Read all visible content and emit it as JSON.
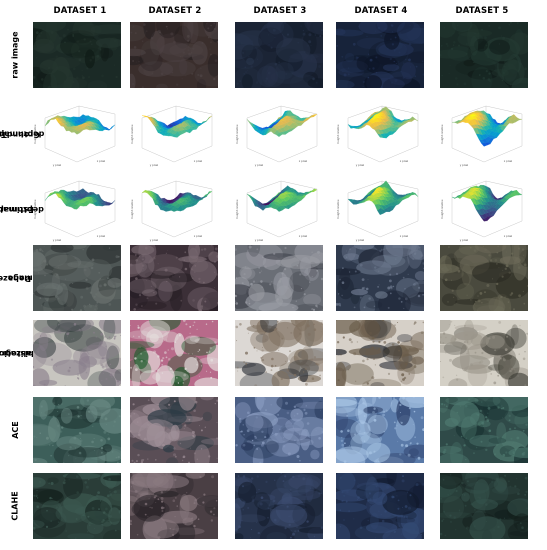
{
  "columns": [
    "DATASET 1",
    "DATASET 2",
    "DATASET 3",
    "DATASET 4",
    "DATASET 5"
  ],
  "rows": [
    {
      "label": "raw image",
      "lines": [
        "raw image"
      ],
      "kind": "image"
    },
    {
      "label": "GroundTruth depthmap",
      "lines": [
        "GroundTruth",
        "depthmap"
      ],
      "kind": "plot"
    },
    {
      "label": "Estimated depthmap",
      "lines": [
        "Estimated",
        "depthmap"
      ],
      "kind": "plot"
    },
    {
      "label": "Dehazed image",
      "lines": [
        "Dehazed",
        "image"
      ],
      "kind": "image"
    },
    {
      "label": "histogram equalization",
      "lines": [
        "histogram",
        "equalization"
      ],
      "kind": "image"
    },
    {
      "label": "ACE",
      "lines": [
        "ACE"
      ],
      "kind": "image"
    },
    {
      "label": "CLAHE",
      "lines": [
        "CLAHE"
      ],
      "kind": "image"
    }
  ],
  "plot_axis_text": {
    "z_label": "height relative",
    "x_label": "x pixel",
    "y_label": "y pixel"
  },
  "tile_palettes": {
    "raw image": [
      [
        "#1b2a26",
        "#25362f",
        "#0f1a16"
      ],
      [
        "#3a2e2c",
        "#4d4344",
        "#201b1d"
      ],
      [
        "#1b2435",
        "#27334a",
        "#121a28"
      ],
      [
        "#17233a",
        "#243458",
        "#0d1526"
      ],
      [
        "#1a2a26",
        "#243a33",
        "#101a18"
      ]
    ],
    "Dehazed image": [
      [
        "#4e5655",
        "#6b7270",
        "#2e3434"
      ],
      [
        "#3b2f37",
        "#7a6a72",
        "#241c22"
      ],
      [
        "#6a6e76",
        "#9a9ca4",
        "#3d4049"
      ],
      [
        "#2f3a4d",
        "#6f7b90",
        "#1c2434"
      ],
      [
        "#4a4a3e",
        "#6c6a58",
        "#2b2b22"
      ]
    ],
    "histogram equalization": [
      [
        "#c8c6c0",
        "#8a7f8c",
        "#2e3a3a"
      ],
      [
        "#b86a8a",
        "#e5e0de",
        "#1c5a2a"
      ],
      [
        "#dcd8d4",
        "#7f7060",
        "#2a2e36"
      ],
      [
        "#d6d0c8",
        "#6a5c4a",
        "#1a1e26"
      ],
      [
        "#d4d0c6",
        "#9a958a",
        "#3a3a32"
      ]
    ],
    "ACE": [
      [
        "#3d5f5a",
        "#6a8a84",
        "#1d3230"
      ],
      [
        "#5a4e56",
        "#a09098",
        "#2a3a44"
      ],
      [
        "#4a5e84",
        "#8a9cc0",
        "#263658"
      ],
      [
        "#5a7aa8",
        "#aac6e6",
        "#2a3c66"
      ],
      [
        "#2f4a48",
        "#4f7a70",
        "#183030"
      ]
    ],
    "CLAHE": [
      [
        "#2a3d38",
        "#3d5a52",
        "#15211e"
      ],
      [
        "#4a3f44",
        "#8a7a80",
        "#262226"
      ],
      [
        "#26324a",
        "#3c4c70",
        "#141c2c"
      ],
      [
        "#1f2c48",
        "#344a74",
        "#111a2e"
      ],
      [
        "#223430",
        "#34504a",
        "#121e1c"
      ]
    ]
  }
}
